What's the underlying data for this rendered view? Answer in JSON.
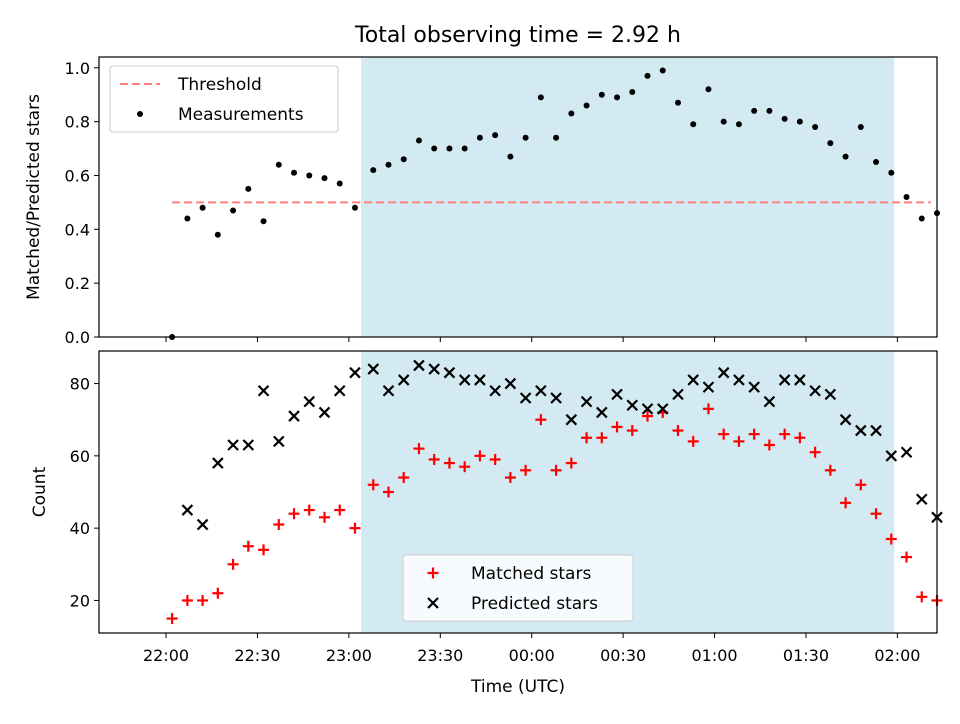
{
  "chart_data": [
    {
      "type": "scatter",
      "title": "Total observing time = 2.92 h",
      "ylabel": "Matched/Predicted stars",
      "ylim": [
        0,
        1.04
      ],
      "yticks": [
        0.0,
        0.2,
        0.4,
        0.6,
        0.8,
        1.0
      ],
      "ytick_labels": [
        "0.0",
        "0.2",
        "0.4",
        "0.6",
        "0.8",
        "1.0"
      ],
      "x_unit": "minutes since 22:00 UTC",
      "xlim": [
        -22,
        253
      ],
      "shaded_region": {
        "x_start": 64,
        "x_end": 239,
        "color": "#d3eaf2"
      },
      "threshold": {
        "name": "Threshold",
        "value": 0.5,
        "x_start": 2,
        "x_end": 251,
        "color": "#ff7f7f"
      },
      "series": [
        {
          "name": "Measurements",
          "color": "#000000",
          "marker": "dot",
          "x": [
            2,
            7,
            12,
            17,
            22,
            27,
            32,
            37,
            42,
            47,
            52,
            57,
            62,
            68,
            73,
            78,
            83,
            88,
            93,
            98,
            103,
            108,
            113,
            118,
            123,
            128,
            133,
            138,
            143,
            148,
            153,
            158,
            163,
            168,
            173,
            178,
            183,
            188,
            193,
            198,
            203,
            208,
            213,
            218,
            223,
            228,
            233,
            238,
            243,
            248
          ],
          "y": [
            0.0,
            0.44,
            0.48,
            0.38,
            0.47,
            0.55,
            0.43,
            0.64,
            0.61,
            0.6,
            0.59,
            0.57,
            0.48,
            0.62,
            0.64,
            0.66,
            0.73,
            0.7,
            0.7,
            0.7,
            0.74,
            0.75,
            0.67,
            0.74,
            0.89,
            0.74,
            0.83,
            0.86,
            0.9,
            0.89,
            0.91,
            0.97,
            0.99,
            0.87,
            0.79,
            0.92,
            0.8,
            0.79,
            0.84,
            0.84,
            0.81,
            0.8,
            0.78,
            0.72,
            0.67,
            0.78,
            0.65,
            0.61,
            0.52,
            0.44
          ]
        }
      ],
      "extra_point": {
        "x": 253,
        "y": 0.46
      },
      "legend": {
        "position": "upper-left",
        "entries": [
          "Threshold",
          "Measurements"
        ]
      }
    },
    {
      "type": "scatter",
      "xlabel": "Time (UTC)",
      "ylabel": "Count",
      "ylim": [
        11,
        89
      ],
      "yticks": [
        20,
        40,
        60,
        80
      ],
      "ytick_labels": [
        "20",
        "40",
        "60",
        "80"
      ],
      "xticks": [
        0,
        30,
        60,
        90,
        120,
        150,
        180,
        210,
        240
      ],
      "xtick_labels": [
        "22:00",
        "22:30",
        "23:00",
        "23:30",
        "00:00",
        "00:30",
        "01:00",
        "01:30",
        "02:00"
      ],
      "x_unit": "minutes since 22:00 UTC",
      "xlim": [
        -22,
        253
      ],
      "shaded_region": {
        "x_start": 64,
        "x_end": 239,
        "color": "#d3eaf2"
      },
      "series": [
        {
          "name": "Matched stars",
          "color": "#ff0000",
          "marker": "plus",
          "x": [
            2,
            7,
            12,
            17,
            22,
            27,
            32,
            37,
            42,
            47,
            52,
            57,
            62,
            68,
            73,
            78,
            83,
            88,
            93,
            98,
            103,
            108,
            113,
            118,
            123,
            128,
            133,
            138,
            143,
            148,
            153,
            158,
            163,
            168,
            173,
            178,
            183,
            188,
            193,
            198,
            203,
            208,
            213,
            218,
            223,
            228,
            233,
            238,
            243,
            248,
            253
          ],
          "y": [
            15,
            20,
            20,
            22,
            30,
            35,
            34,
            41,
            44,
            45,
            43,
            45,
            40,
            52,
            50,
            54,
            62,
            59,
            58,
            57,
            60,
            59,
            54,
            56,
            70,
            56,
            58,
            65,
            65,
            68,
            67,
            71,
            72,
            67,
            64,
            73,
            66,
            64,
            66,
            63,
            66,
            65,
            61,
            56,
            47,
            52,
            44,
            37,
            32,
            21,
            20
          ]
        },
        {
          "name": "Predicted stars",
          "color": "#000000",
          "marker": "x",
          "x": [
            7,
            12,
            17,
            22,
            27,
            32,
            37,
            42,
            47,
            52,
            57,
            62,
            68,
            73,
            78,
            83,
            88,
            93,
            98,
            103,
            108,
            113,
            118,
            123,
            128,
            133,
            138,
            143,
            148,
            153,
            158,
            163,
            168,
            173,
            178,
            183,
            188,
            193,
            198,
            203,
            208,
            213,
            218,
            223,
            228,
            233,
            238,
            243,
            248,
            253
          ],
          "y": [
            45,
            41,
            58,
            63,
            63,
            78,
            64,
            71,
            75,
            72,
            78,
            83,
            84,
            78,
            81,
            85,
            84,
            83,
            81,
            81,
            78,
            80,
            76,
            78,
            76,
            70,
            75,
            72,
            77,
            74,
            73,
            73,
            77,
            81,
            79,
            83,
            81,
            79,
            75,
            81,
            81,
            78,
            77,
            70,
            67,
            67,
            60,
            61,
            48,
            43
          ]
        }
      ],
      "legend": {
        "position": "lower-center",
        "entries": [
          "Matched stars",
          "Predicted stars"
        ]
      }
    }
  ]
}
